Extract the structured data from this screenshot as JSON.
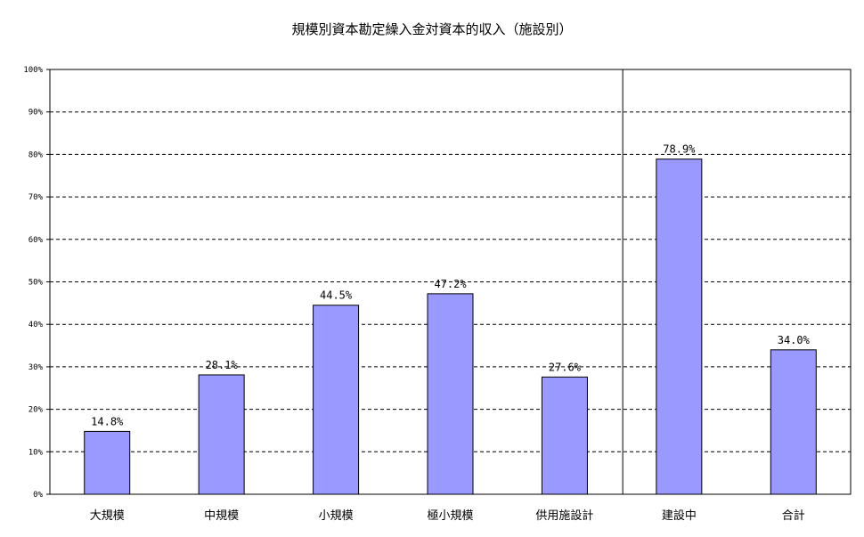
{
  "chart_data": {
    "type": "bar",
    "title": "規模別資本勘定繰入金対資本的収入（施設別）",
    "categories": [
      "大規模",
      "中規模",
      "小規模",
      "極小規模",
      "供用施設計",
      "建設中",
      "合計"
    ],
    "values": [
      14.8,
      28.1,
      44.5,
      47.2,
      27.6,
      78.9,
      34.0
    ],
    "data_labels": [
      "14.8%",
      "28.1%",
      "44.5%",
      "47.2%",
      "27.6%",
      "78.9%",
      "34.0%"
    ],
    "y_ticks": [
      "0%",
      "10%",
      "20%",
      "30%",
      "40%",
      "50%",
      "60%",
      "70%",
      "80%",
      "90%",
      "100%"
    ],
    "ylim": [
      0,
      100
    ],
    "xlabel": "",
    "ylabel": "",
    "grid": true,
    "legend": "none",
    "separator_after_category_index": 4,
    "bar_color": "#9999ff",
    "bar_border_color": "#000000"
  }
}
